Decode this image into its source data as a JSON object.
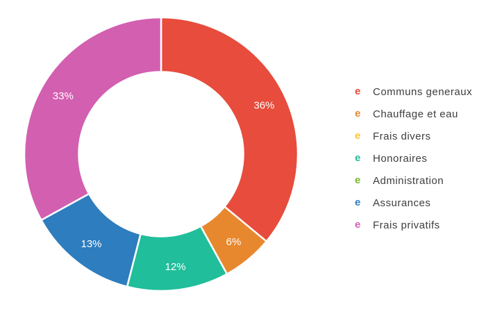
{
  "chart_data": {
    "type": "pie",
    "variant": "donut",
    "title": "",
    "unit": "%",
    "direction": "clockwise",
    "start_angle_deg": 0,
    "donut_hole_ratio": 0.6,
    "legend_position": "right",
    "legend_marker_glyph": "e",
    "slice_label_color": "#ffffff",
    "slice_separator_color": "#ffffff",
    "legend_text_color": "#3d3d3d",
    "background_color": "#ffffff",
    "categories": [
      "Communs generaux",
      "Chauffage et eau",
      "Frais divers",
      "Honoraires",
      "Administration",
      "Assurances",
      "Frais privatifs"
    ],
    "values": [
      36,
      6,
      0,
      12,
      0,
      13,
      33
    ],
    "slice_labels": [
      "36%",
      "6%",
      "",
      "12%",
      "",
      "13%",
      "33%"
    ],
    "colors": [
      "#e74c3c",
      "#e8882e",
      "#f5c53d",
      "#20be9b",
      "#7ab829",
      "#2e7dbe",
      "#d35fb0"
    ]
  }
}
